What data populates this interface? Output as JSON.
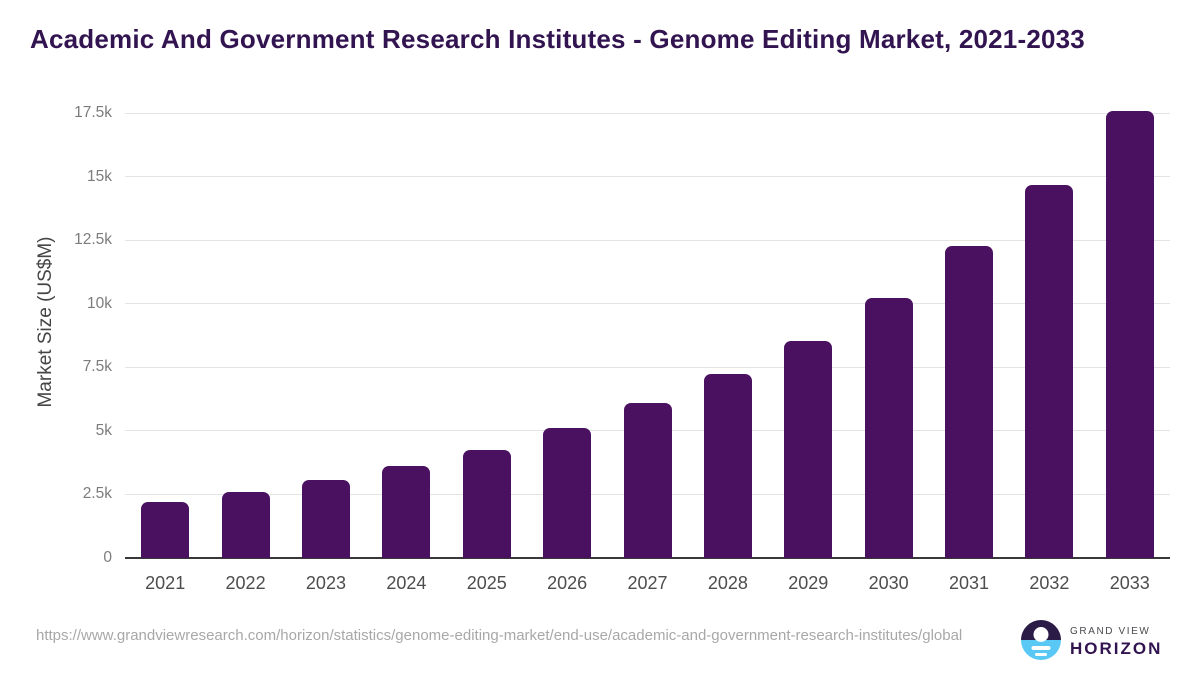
{
  "title": "Academic And Government Research Institutes - Genome Editing Market, 2021-2033",
  "chart_data": {
    "type": "bar",
    "categories": [
      "2021",
      "2022",
      "2023",
      "2024",
      "2025",
      "2026",
      "2027",
      "2028",
      "2029",
      "2030",
      "2031",
      "2032",
      "2033"
    ],
    "values": [
      2200,
      2600,
      3070,
      3610,
      4240,
      5100,
      6100,
      7250,
      8540,
      10240,
      12280,
      14660,
      17570
    ],
    "title": "Academic And Government Research Institutes - Genome Editing Market, 2021-2033",
    "xlabel": "",
    "ylabel": "Market Size (US$M)",
    "ylim": [
      0,
      17500
    ],
    "ytick_values": [
      0,
      2500,
      5000,
      7500,
      10000,
      12500,
      15000,
      17500
    ],
    "ytick_labels": [
      "0",
      "2.5k",
      "5k",
      "7.5k",
      "10k",
      "12.5k",
      "15k",
      "17.5k"
    ],
    "bar_color": "#4a1161",
    "grid": true,
    "legend": false
  },
  "footer": {
    "source_url": "https://www.grandviewresearch.com/horizon/statistics/genome-editing-market/end-use/academic-and-government-research-institutes/global",
    "logo": {
      "line1": "GRAND VIEW",
      "line2": "HORIZON"
    }
  },
  "colors": {
    "bar": "#4a1161",
    "title_text": "#321450",
    "axis_line": "#383838",
    "gridline": "#e4e4e4",
    "ytick_text": "#7c7c7c",
    "xtick_text": "#4d4d4d",
    "source_text": "#a8a8a8",
    "logo_dark": "#2b1b47",
    "logo_blue": "#5ac8f5"
  }
}
